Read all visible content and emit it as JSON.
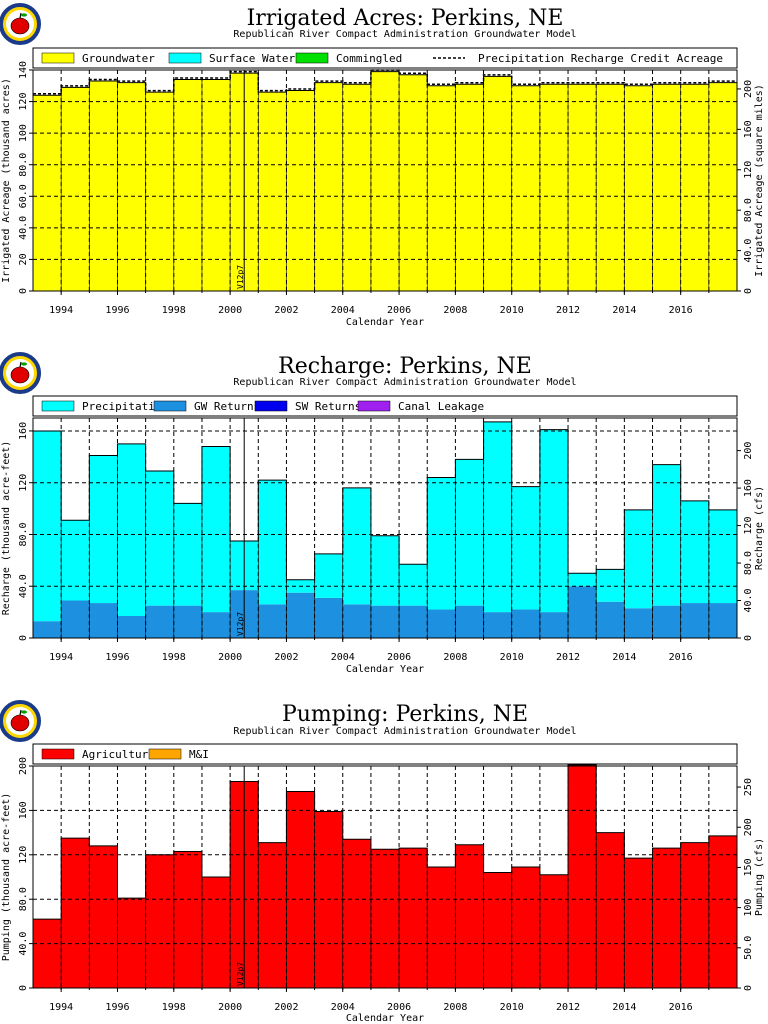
{
  "colors": {
    "yellow": "#ffff00",
    "cyan": "#00ffff",
    "green": "#00e000",
    "blue": "#1e90e0",
    "darkblue": "#0000ee",
    "purple": "#a020f0",
    "red": "#ff0000",
    "orange": "#ffa500"
  },
  "icons": [
    "apple-logo-icon"
  ],
  "chart_data": [
    {
      "type": "bar",
      "stacked": true,
      "title": "Irrigated Acres: Perkins, NE",
      "subtitle": "Republican River Compact Administration Groundwater Model",
      "xlabel": "Calendar Year",
      "ylabel": "Irrigated Acreage (thousand acres)",
      "y2label": "Irrigated Acreage (square miles)",
      "ylim": [
        0,
        140
      ],
      "yticks": [
        "0",
        "20",
        "40.0",
        "60.0",
        "80.0",
        "100",
        "120",
        "140"
      ],
      "y2lim": [
        0,
        218.75
      ],
      "y2ticks": [
        "0",
        "40.0",
        "80.0",
        "120",
        "160",
        "200"
      ],
      "xlim": [
        1993,
        2018
      ],
      "xticks": [
        "1994",
        "1996",
        "1998",
        "2000",
        "2002",
        "2004",
        "2006",
        "2008",
        "2010",
        "2012",
        "2014",
        "2016"
      ],
      "grid": true,
      "legend": "top",
      "annotation": "V12p7",
      "annotation_x": 2000.5,
      "x": [
        1993,
        1994,
        1995,
        1996,
        1997,
        1998,
        1999,
        2000,
        2001,
        2002,
        2003,
        2004,
        2005,
        2006,
        2007,
        2008,
        2009,
        2010,
        2011,
        2012,
        2013,
        2014,
        2015,
        2016,
        2017
      ],
      "series": [
        {
          "name": "Groundwater",
          "color": "yellow",
          "values": [
            124,
            129,
            133,
            132,
            126,
            134,
            134,
            138,
            126,
            127,
            132,
            131,
            139,
            137,
            130,
            131,
            136,
            130,
            131,
            131,
            131,
            130,
            131,
            131,
            132
          ]
        },
        {
          "name": "Surface Water",
          "color": "cyan",
          "values": [
            0,
            0,
            0,
            0,
            0,
            0,
            0,
            0,
            0,
            0,
            0,
            0,
            0,
            0,
            0,
            0,
            0,
            0,
            0,
            0,
            0,
            0,
            0,
            0,
            0
          ]
        },
        {
          "name": "Commingled",
          "color": "green",
          "values": [
            0,
            0,
            0,
            0,
            0,
            0,
            0,
            0,
            0,
            0,
            0,
            0,
            0,
            0,
            0,
            0,
            0,
            0,
            0,
            0,
            0,
            0,
            0,
            0,
            0
          ]
        }
      ],
      "dashed_series": {
        "name": "Precipitation Recharge Credit Acreage",
        "values": [
          124,
          129,
          133,
          132,
          126,
          134,
          134,
          138,
          126,
          127,
          132,
          131,
          139,
          137,
          130,
          131,
          136,
          130,
          131,
          131,
          131,
          130,
          131,
          131,
          132
        ]
      }
    },
    {
      "type": "bar",
      "stacked": true,
      "title": "Recharge: Perkins, NE",
      "subtitle": "Republican River Compact Administration Groundwater Model",
      "xlabel": "Calendar Year",
      "ylabel": "Recharge (thousand acre-feet)",
      "y2label": "Recharge (cfs)",
      "ylim": [
        0,
        170
      ],
      "yticks": [
        "0",
        "40.0",
        "80.0",
        "120",
        "160"
      ],
      "y2lim": [
        0,
        234.8
      ],
      "y2ticks": [
        "0",
        "40.0",
        "80.0",
        "120",
        "160",
        "200"
      ],
      "xlim": [
        1993,
        2018
      ],
      "xticks": [
        "1994",
        "1996",
        "1998",
        "2000",
        "2002",
        "2004",
        "2006",
        "2008",
        "2010",
        "2012",
        "2014",
        "2016"
      ],
      "grid": true,
      "legend": "top",
      "annotation": "V12p7",
      "annotation_x": 2000.5,
      "x": [
        1993,
        1994,
        1995,
        1996,
        1997,
        1998,
        1999,
        2000,
        2001,
        2002,
        2003,
        2004,
        2005,
        2006,
        2007,
        2008,
        2009,
        2010,
        2011,
        2012,
        2013,
        2014,
        2015,
        2016,
        2017
      ],
      "series": [
        {
          "name": "GW Returns",
          "color": "blue",
          "values": [
            13,
            29,
            27,
            17,
            25,
            25,
            20,
            37,
            26,
            35,
            31,
            26,
            25,
            25,
            22,
            25,
            20,
            22,
            20,
            40,
            28,
            23,
            25,
            27,
            27
          ]
        },
        {
          "name": "Precipitation",
          "color": "cyan",
          "values": [
            147,
            62,
            114,
            133,
            104,
            79,
            128,
            38,
            96,
            10,
            34,
            90,
            54,
            32,
            102,
            113,
            147,
            95,
            141,
            10,
            25,
            76,
            109,
            79,
            72
          ]
        },
        {
          "name": "SW Returns",
          "color": "darkblue",
          "values": [
            0,
            0,
            0,
            0,
            0,
            0,
            0,
            0,
            0,
            0,
            0,
            0,
            0,
            0,
            0,
            0,
            0,
            0,
            0,
            0,
            0,
            0,
            0,
            0,
            0
          ]
        },
        {
          "name": "Canal Leakage",
          "color": "purple",
          "values": [
            0,
            0,
            0,
            0,
            0,
            0,
            0,
            0,
            0,
            0,
            0,
            0,
            0,
            0,
            0,
            0,
            0,
            0,
            0,
            0,
            0,
            0,
            0,
            0,
            0
          ]
        }
      ],
      "legend_order": [
        "Precipitation",
        "GW Returns",
        "SW Returns",
        "Canal Leakage"
      ]
    },
    {
      "type": "bar",
      "stacked": true,
      "title": "Pumping: Perkins, NE",
      "subtitle": "Republican River Compact Administration Groundwater Model",
      "xlabel": "Calendar Year",
      "ylabel": "Pumping (thousand acre-feet)",
      "y2label": "Pumping (cfs)",
      "ylim": [
        0,
        200
      ],
      "yticks": [
        "0",
        "40.0",
        "80.0",
        "120",
        "160",
        "200"
      ],
      "y2lim": [
        0,
        276.2
      ],
      "y2ticks": [
        "0",
        "50.0",
        "100",
        "150",
        "200",
        "250"
      ],
      "xlim": [
        1993,
        2018
      ],
      "xticks": [
        "1994",
        "1996",
        "1998",
        "2000",
        "2002",
        "2004",
        "2006",
        "2008",
        "2010",
        "2012",
        "2014",
        "2016"
      ],
      "grid": true,
      "legend": "top",
      "annotation": "V12p7",
      "annotation_x": 2000.5,
      "x": [
        1993,
        1994,
        1995,
        1996,
        1997,
        1998,
        1999,
        2000,
        2001,
        2002,
        2003,
        2004,
        2005,
        2006,
        2007,
        2008,
        2009,
        2010,
        2011,
        2012,
        2013,
        2014,
        2015,
        2016,
        2017
      ],
      "series": [
        {
          "name": "Agricultural",
          "color": "red",
          "values": [
            62,
            135,
            128,
            81,
            120,
            123,
            100,
            186,
            131,
            177,
            159,
            134,
            125,
            126,
            109,
            129,
            104,
            109,
            102,
            201,
            140,
            117,
            126,
            131,
            137
          ]
        },
        {
          "name": "M&I",
          "color": "orange",
          "values": [
            0,
            0,
            0,
            0,
            0,
            0,
            0,
            0,
            0,
            0,
            0,
            0,
            0,
            0,
            0,
            0,
            0,
            0,
            0,
            0,
            0,
            0,
            0,
            0,
            0
          ]
        }
      ],
      "legend_order": [
        "Agricultural",
        "M&I"
      ]
    }
  ]
}
